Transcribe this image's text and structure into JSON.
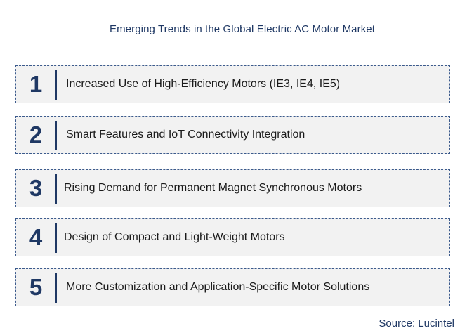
{
  "title": "Emerging Trends in the Global Electric AC Motor Market",
  "trends": [
    {
      "number": "1",
      "label": "Increased Use of High-Efficiency Motors (IE3, IE4, IE5)"
    },
    {
      "number": "2",
      "label": "Smart Features and IoT Connectivity Integration"
    },
    {
      "number": "3",
      "label": "Rising Demand for Permanent Magnet Synchronous Motors"
    },
    {
      "number": "4",
      "label": "Design of Compact and Light-Weight Motors"
    },
    {
      "number": "5",
      "label": "More Customization and Application-Specific Motor Solutions"
    }
  ],
  "source": "Source: Lucintel",
  "colors": {
    "accent": "#1f3864",
    "box_background": "#f2f2f2",
    "box_border": "#3b5a8c"
  }
}
